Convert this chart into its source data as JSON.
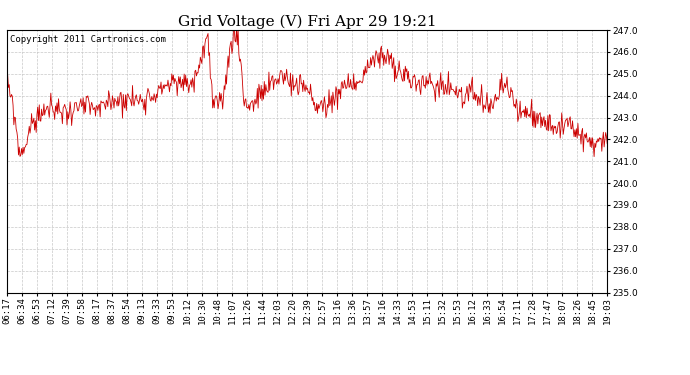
{
  "title": "Grid Voltage (V) Fri Apr 29 19:21",
  "copyright_text": "Copyright 2011 Cartronics.com",
  "line_color": "#cc0000",
  "bg_color": "#ffffff",
  "plot_bg_color": "#ffffff",
  "grid_color": "#c8c8c8",
  "ylim": [
    235.0,
    247.0
  ],
  "yticks": [
    235.0,
    236.0,
    237.0,
    238.0,
    239.0,
    240.0,
    241.0,
    242.0,
    243.0,
    244.0,
    245.0,
    246.0,
    247.0
  ],
  "xtick_labels": [
    "06:17",
    "06:34",
    "06:53",
    "07:12",
    "07:39",
    "07:58",
    "08:17",
    "08:37",
    "08:54",
    "09:13",
    "09:33",
    "09:53",
    "10:12",
    "10:30",
    "10:48",
    "11:07",
    "11:26",
    "11:44",
    "12:03",
    "12:20",
    "12:39",
    "12:57",
    "13:16",
    "13:36",
    "13:57",
    "14:16",
    "14:33",
    "14:53",
    "15:11",
    "15:32",
    "15:53",
    "16:12",
    "16:33",
    "16:54",
    "17:11",
    "17:28",
    "17:47",
    "18:07",
    "18:26",
    "18:45",
    "19:03"
  ],
  "title_fontsize": 11,
  "tick_fontsize": 6.5,
  "copyright_fontsize": 6.5,
  "figwidth": 6.9,
  "figheight": 3.75,
  "dpi": 100
}
